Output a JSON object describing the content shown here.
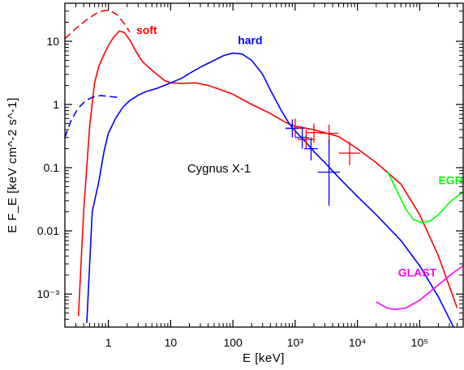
{
  "chart_data": {
    "type": "line",
    "xlabel": "E [keV]",
    "ylabel": "E F_E [keV cm^-2 s^-1]",
    "xscale": "log",
    "yscale": "log",
    "xlim": [
      0.2,
      500000
    ],
    "ylim": [
      0.0003,
      40
    ],
    "x_ticks": [
      {
        "value": 1,
        "label": "1"
      },
      {
        "value": 10,
        "label": "10"
      },
      {
        "value": 100,
        "label": "100"
      },
      {
        "value": 1000,
        "label": "10³"
      },
      {
        "value": 10000,
        "label": "10⁴"
      },
      {
        "value": 100000,
        "label": "10⁵"
      }
    ],
    "y_ticks": [
      {
        "value": 0.001,
        "label": "10⁻³"
      },
      {
        "value": 0.01,
        "label": "0.01"
      },
      {
        "value": 0.1,
        "label": "0.1"
      },
      {
        "value": 1,
        "label": "1"
      },
      {
        "value": 10,
        "label": "10"
      }
    ],
    "annotation": "Cygnus X-1",
    "series": [
      {
        "name": "soft",
        "color": "#ff0000",
        "style": "solid",
        "points": [
          [
            0.33,
            0.00045
          ],
          [
            0.4,
            0.02
          ],
          [
            0.5,
            0.45
          ],
          [
            0.6,
            2.2
          ],
          [
            0.7,
            4.0
          ],
          [
            0.85,
            6.2
          ],
          [
            1.0,
            8.5
          ],
          [
            1.2,
            11.5
          ],
          [
            1.5,
            14.5
          ],
          [
            1.8,
            13.8
          ],
          [
            2.2,
            10.5
          ],
          [
            2.8,
            6.8
          ],
          [
            3.5,
            4.8
          ],
          [
            4.5,
            3.8
          ],
          [
            6.0,
            3.0
          ],
          [
            8.0,
            2.4
          ],
          [
            10.0,
            2.2
          ],
          [
            15.0,
            2.15
          ],
          [
            25.0,
            2.2
          ],
          [
            40.0,
            2.0
          ],
          [
            60.0,
            1.75
          ],
          [
            100.0,
            1.45
          ],
          [
            200.0,
            1.0
          ],
          [
            400.0,
            0.72
          ],
          [
            700.0,
            0.52
          ],
          [
            1000.0,
            0.45
          ],
          [
            2000.0,
            0.4
          ],
          [
            5000.0,
            0.31
          ],
          [
            10000.0,
            0.2
          ],
          [
            20000.0,
            0.12
          ],
          [
            50000.0,
            0.055
          ],
          [
            100000.0,
            0.018
          ],
          [
            200000.0,
            0.004
          ],
          [
            400000.0,
            0.0006
          ]
        ]
      },
      {
        "name": "soft model extension",
        "color": "#ff0000",
        "style": "dashed",
        "points": [
          [
            0.2,
            11.0
          ],
          [
            0.3,
            16.0
          ],
          [
            0.45,
            22.0
          ],
          [
            0.65,
            28.0
          ],
          [
            0.9,
            31.0
          ],
          [
            1.1,
            30.0
          ],
          [
            1.4,
            26.0
          ],
          [
            1.8,
            19.0
          ],
          [
            2.2,
            14.0
          ]
        ]
      },
      {
        "name": "hard",
        "color": "#0000ff",
        "style": "solid",
        "points": [
          [
            0.45,
            0.00035
          ],
          [
            0.55,
            0.02
          ],
          [
            0.7,
            0.06
          ],
          [
            0.85,
            0.18
          ],
          [
            1.0,
            0.35
          ],
          [
            1.3,
            0.6
          ],
          [
            1.7,
            0.9
          ],
          [
            2.2,
            1.15
          ],
          [
            3.0,
            1.4
          ],
          [
            4.0,
            1.6
          ],
          [
            6.0,
            1.8
          ],
          [
            8.0,
            2.0
          ],
          [
            10.0,
            2.2
          ],
          [
            15.0,
            2.6
          ],
          [
            20.0,
            3.1
          ],
          [
            30.0,
            3.9
          ],
          [
            50.0,
            5.0
          ],
          [
            70.0,
            5.9
          ],
          [
            100.0,
            6.5
          ],
          [
            140.0,
            6.3
          ],
          [
            200.0,
            5.0
          ],
          [
            300.0,
            3.0
          ],
          [
            400.0,
            1.7
          ],
          [
            600.0,
            0.8
          ],
          [
            800.0,
            0.5
          ],
          [
            1000.0,
            0.38
          ],
          [
            1500.0,
            0.25
          ],
          [
            2000.0,
            0.18
          ],
          [
            3000.0,
            0.12
          ],
          [
            5000.0,
            0.07
          ],
          [
            10000.0,
            0.035
          ],
          [
            20000.0,
            0.018
          ],
          [
            50000.0,
            0.007
          ],
          [
            100000.0,
            0.0028
          ],
          [
            200000.0,
            0.0009
          ],
          [
            350000.0,
            0.0003
          ]
        ]
      },
      {
        "name": "hard model extension",
        "color": "#0000ff",
        "style": "dashed",
        "points": [
          [
            0.2,
            0.3
          ],
          [
            0.25,
            0.55
          ],
          [
            0.32,
            0.85
          ],
          [
            0.42,
            1.12
          ],
          [
            0.55,
            1.3
          ],
          [
            0.75,
            1.38
          ],
          [
            1.0,
            1.35
          ],
          [
            1.3,
            1.3
          ],
          [
            1.6,
            1.32
          ]
        ]
      },
      {
        "name": "EGRET",
        "color": "#00ff00",
        "style": "solid",
        "points": [
          [
            30000.0,
            0.09
          ],
          [
            40000.0,
            0.05
          ],
          [
            60000.0,
            0.022
          ],
          [
            80000.0,
            0.015
          ],
          [
            110000.0,
            0.0135
          ],
          [
            150000.0,
            0.0145
          ],
          [
            200000.0,
            0.018
          ],
          [
            300000.0,
            0.028
          ],
          [
            500000.0,
            0.042
          ]
        ]
      },
      {
        "name": "GLAST",
        "color": "#ff00ff",
        "style": "solid",
        "points": [
          [
            20000.0,
            0.00075
          ],
          [
            30000.0,
            0.0006
          ],
          [
            40000.0,
            0.00057
          ],
          [
            60000.0,
            0.0006
          ],
          [
            100000.0,
            0.0008
          ],
          [
            200000.0,
            0.0014
          ],
          [
            350000.0,
            0.0022
          ],
          [
            500000.0,
            0.0028
          ]
        ]
      }
    ],
    "error_points": [
      {
        "series": "soft",
        "color": "#ff0000",
        "x": 1000,
        "y": 0.42,
        "xlo": 700,
        "xhi": 1400,
        "ylo": 0.3,
        "yhi": 0.6
      },
      {
        "series": "soft",
        "color": "#ff0000",
        "x": 1500,
        "y": 0.28,
        "xlo": 1100,
        "xhi": 2000,
        "ylo": 0.2,
        "yhi": 0.4
      },
      {
        "series": "soft",
        "color": "#ff0000",
        "x": 2000,
        "y": 0.36,
        "xlo": 1500,
        "xhi": 3000,
        "ylo": 0.25,
        "yhi": 0.5
      },
      {
        "series": "soft",
        "color": "#ff0000",
        "x": 3500,
        "y": 0.35,
        "xlo": 2500,
        "xhi": 5000,
        "ylo": 0.25,
        "yhi": 0.48
      },
      {
        "series": "soft",
        "color": "#ff0000",
        "x": 7500,
        "y": 0.17,
        "xlo": 5000,
        "xhi": 11000,
        "ylo": 0.11,
        "yhi": 0.26
      },
      {
        "series": "hard",
        "color": "#0000ff",
        "x": 900,
        "y": 0.42,
        "xlo": 700,
        "xhi": 1100,
        "ylo": 0.3,
        "yhi": 0.58
      },
      {
        "series": "hard",
        "color": "#0000ff",
        "x": 1300,
        "y": 0.3,
        "xlo": 1000,
        "xhi": 1700,
        "ylo": 0.2,
        "yhi": 0.45
      },
      {
        "series": "hard",
        "color": "#0000ff",
        "x": 1800,
        "y": 0.2,
        "xlo": 1400,
        "xhi": 2300,
        "ylo": 0.13,
        "yhi": 0.3
      },
      {
        "series": "hard",
        "color": "#0000ff",
        "x": 3500,
        "y": 0.085,
        "xlo": 2300,
        "xhi": 5200,
        "ylo": 0.025,
        "yhi": 0.28
      }
    ],
    "labels": [
      {
        "text": "soft",
        "color": "#ff0000",
        "x": 2.8,
        "y": 13
      },
      {
        "text": "hard",
        "color": "#0000ff",
        "x": 120,
        "y": 9
      },
      {
        "text": "EGRET",
        "color": "#00ff00",
        "x": 200000,
        "y": 0.055
      },
      {
        "text": "GLAST",
        "color": "#ff00ff",
        "x": 45000,
        "y": 0.0019
      }
    ]
  }
}
